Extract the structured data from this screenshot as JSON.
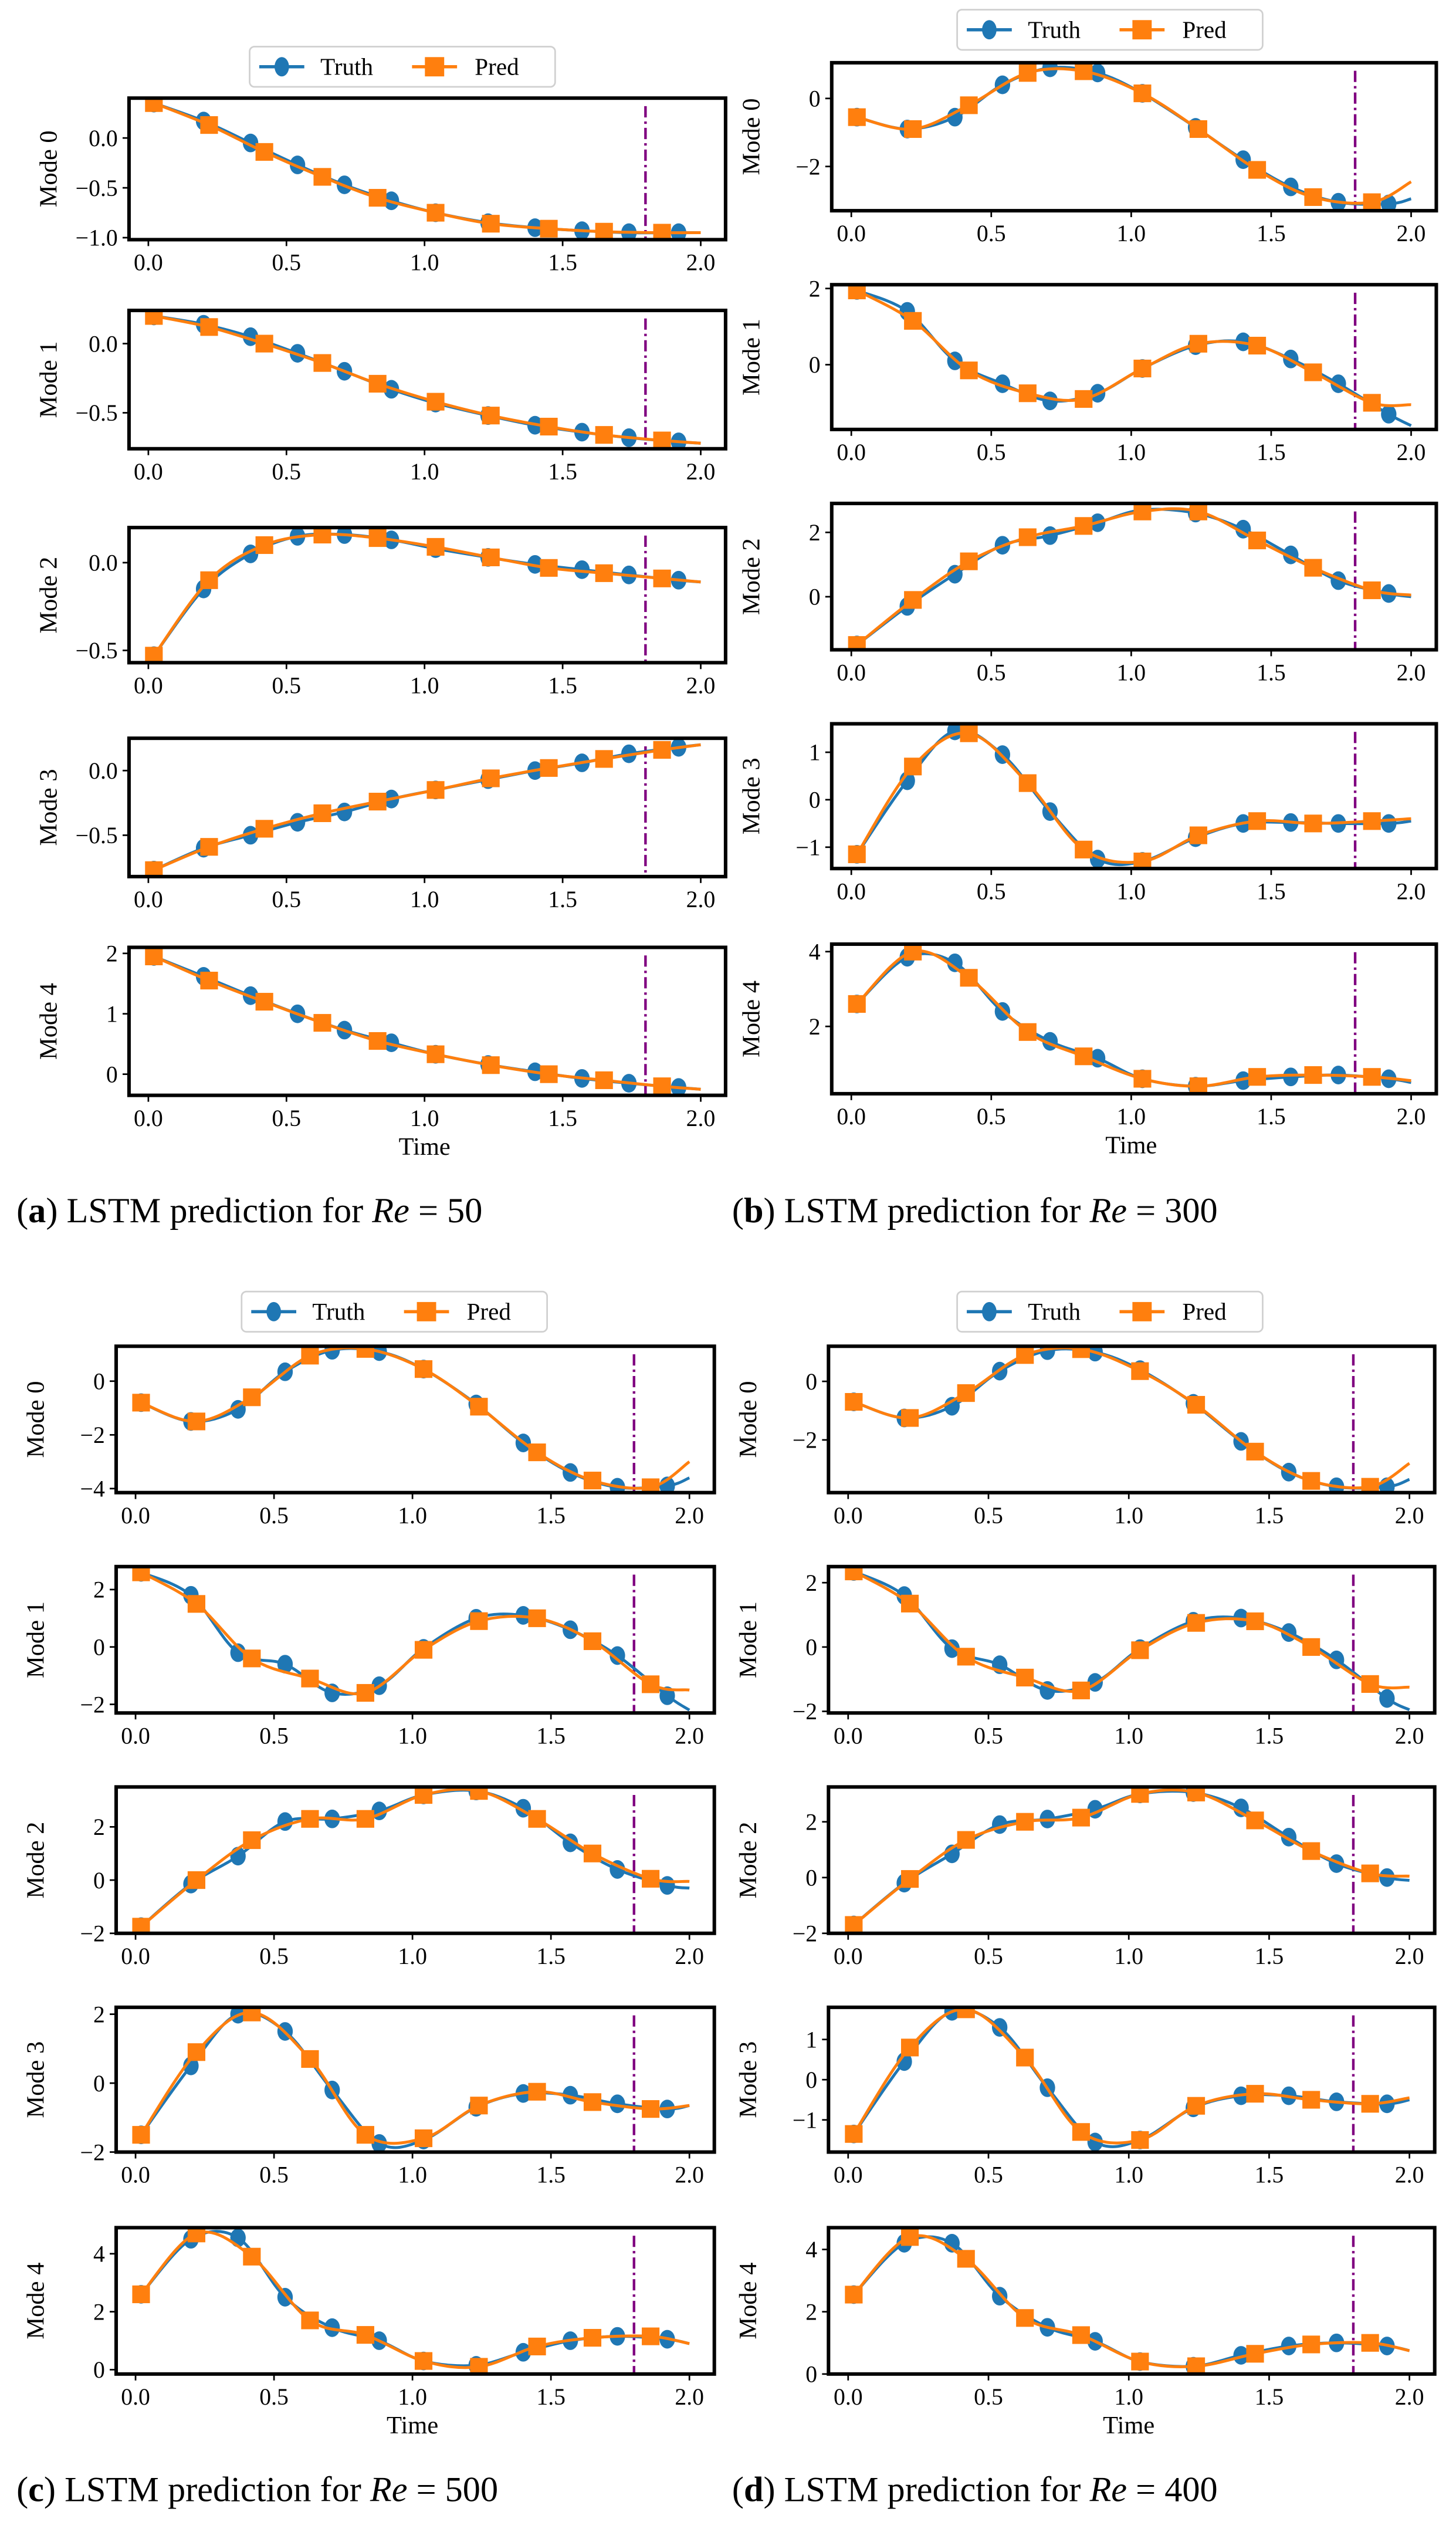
{
  "chart_data": [
    {
      "type": "line",
      "caption": {
        "label": "a",
        "text": " LSTM prediction for ",
        "var": "Re",
        "value": " = 50"
      },
      "legend": [
        "Truth",
        "Pred"
      ],
      "legend_placement": "top-center",
      "xlabel": "Time",
      "xticks": [
        0,
        0.5,
        1,
        1.5,
        2
      ],
      "xtick_labels": [
        "0.0",
        "0.5",
        "1.0",
        "1.5",
        "2.0"
      ],
      "xlim": [
        -0.07,
        2.09
      ],
      "split_time": 1.8,
      "t_truth": [
        0.02,
        0.2,
        0.37,
        0.54,
        0.71,
        0.88,
        1.04,
        1.23,
        1.4,
        1.57,
        1.74,
        1.92
      ],
      "t_pred": [
        0.02,
        0.22,
        0.42,
        0.63,
        0.83,
        1.04,
        1.24,
        1.45,
        1.65,
        1.86
      ],
      "subplots": [
        {
          "ylabel": "Mode 0",
          "ylim": [
            -1.02,
            0.4
          ],
          "yticks": [
            0,
            -0.5,
            -1
          ],
          "ytick_labels": [
            "0.0",
            "−0.5",
            "−1.0"
          ],
          "truth": [
            0.35,
            0.17,
            -0.05,
            -0.27,
            -0.47,
            -0.63,
            -0.75,
            -0.85,
            -0.9,
            -0.93,
            -0.95,
            -0.95
          ],
          "truth_end": -0.95,
          "pred": [
            0.35,
            0.13,
            -0.14,
            -0.39,
            -0.6,
            -0.75,
            -0.86,
            -0.91,
            -0.94,
            -0.95
          ],
          "pred_end": -0.95
        },
        {
          "ylabel": "Mode 1",
          "ylim": [
            -0.76,
            0.24
          ],
          "yticks": [
            0,
            -0.5
          ],
          "ytick_labels": [
            "0.0",
            "−0.5"
          ],
          "truth": [
            0.2,
            0.14,
            0.05,
            -0.07,
            -0.2,
            -0.33,
            -0.43,
            -0.52,
            -0.59,
            -0.64,
            -0.68,
            -0.71
          ],
          "truth_end": -0.72,
          "pred": [
            0.2,
            0.12,
            0.0,
            -0.14,
            -0.29,
            -0.42,
            -0.52,
            -0.6,
            -0.66,
            -0.7
          ],
          "pred_end": -0.72
        },
        {
          "ylabel": "Mode 2",
          "ylim": [
            -0.57,
            0.2
          ],
          "yticks": [
            0,
            -0.5
          ],
          "ytick_labels": [
            "0.0",
            "−0.5"
          ],
          "truth": [
            -0.53,
            -0.15,
            0.05,
            0.15,
            0.16,
            0.13,
            0.08,
            0.03,
            -0.01,
            -0.04,
            -0.07,
            -0.1
          ],
          "truth_end": -0.11,
          "pred": [
            -0.53,
            -0.1,
            0.1,
            0.16,
            0.14,
            0.09,
            0.03,
            -0.03,
            -0.06,
            -0.09
          ],
          "pred_end": -0.11
        },
        {
          "ylabel": "Mode 3",
          "ylim": [
            -0.82,
            0.25
          ],
          "yticks": [
            0,
            -0.5
          ],
          "ytick_labels": [
            "0.0",
            "−0.5"
          ],
          "truth": [
            -0.77,
            -0.6,
            -0.5,
            -0.4,
            -0.32,
            -0.22,
            -0.15,
            -0.07,
            0.0,
            0.06,
            0.13,
            0.18
          ],
          "truth_end": 0.2,
          "pred": [
            -0.77,
            -0.59,
            -0.45,
            -0.33,
            -0.24,
            -0.15,
            -0.06,
            0.02,
            0.09,
            0.16
          ],
          "pred_end": 0.2
        },
        {
          "ylabel": "Mode 4",
          "ylim": [
            -0.35,
            2.1
          ],
          "yticks": [
            0,
            1,
            2
          ],
          "ytick_labels": [
            "0",
            "1",
            "2"
          ],
          "truth": [
            1.95,
            1.62,
            1.3,
            1.0,
            0.73,
            0.52,
            0.33,
            0.16,
            0.04,
            -0.07,
            -0.15,
            -0.22
          ],
          "truth_end": -0.25,
          "pred": [
            1.95,
            1.55,
            1.2,
            0.85,
            0.55,
            0.33,
            0.15,
            0.0,
            -0.1,
            -0.2
          ],
          "pred_end": -0.25
        }
      ]
    },
    {
      "type": "line",
      "caption": {
        "label": "b",
        "text": " LSTM prediction for ",
        "var": "Re",
        "value": " = 300"
      },
      "legend": [
        "Truth",
        "Pred"
      ],
      "legend_placement": "top-center",
      "xlabel": "Time",
      "xticks": [
        0,
        0.5,
        1,
        1.5,
        2
      ],
      "xtick_labels": [
        "0.0",
        "0.5",
        "1.0",
        "1.5",
        "2.0"
      ],
      "xlim": [
        -0.07,
        2.09
      ],
      "split_time": 1.8,
      "t_truth": [
        0.02,
        0.2,
        0.37,
        0.54,
        0.71,
        0.88,
        1.04,
        1.23,
        1.4,
        1.57,
        1.74,
        1.92
      ],
      "t_pred": [
        0.02,
        0.22,
        0.42,
        0.63,
        0.83,
        1.04,
        1.24,
        1.45,
        1.65,
        1.86
      ],
      "subplots": [
        {
          "ylabel": "Mode 0",
          "ylim": [
            -3.3,
            1.05
          ],
          "yticks": [
            0,
            -2
          ],
          "ytick_labels": [
            "0",
            "−2"
          ],
          "truth": [
            -0.55,
            -0.9,
            -0.55,
            0.4,
            0.9,
            0.75,
            0.15,
            -0.85,
            -1.8,
            -2.6,
            -3.05,
            -3.1
          ],
          "truth_end": -2.95,
          "pred": [
            -0.55,
            -0.9,
            -0.2,
            0.75,
            0.8,
            0.15,
            -0.9,
            -2.1,
            -2.9,
            -3.05
          ],
          "pred_end": -2.45
        },
        {
          "ylabel": "Mode 1",
          "ylim": [
            -1.7,
            2.1
          ],
          "yticks": [
            2,
            0
          ],
          "ytick_labels": [
            "2",
            "0"
          ],
          "truth": [
            1.95,
            1.4,
            0.1,
            -0.5,
            -0.95,
            -0.75,
            -0.1,
            0.5,
            0.6,
            0.15,
            -0.5,
            -1.3
          ],
          "truth_end": -1.6,
          "pred": [
            1.95,
            1.15,
            -0.15,
            -0.75,
            -0.9,
            -0.1,
            0.55,
            0.5,
            -0.2,
            -1.0
          ],
          "pred_end": -1.05
        },
        {
          "ylabel": "Mode 2",
          "ylim": [
            -1.65,
            2.9
          ],
          "yticks": [
            2,
            0
          ],
          "ytick_labels": [
            "2",
            "0"
          ],
          "truth": [
            -1.5,
            -0.3,
            0.7,
            1.6,
            1.9,
            2.3,
            2.7,
            2.6,
            2.1,
            1.3,
            0.5,
            0.1
          ],
          "truth_end": 0.0,
          "pred": [
            -1.5,
            -0.1,
            1.1,
            1.85,
            2.2,
            2.65,
            2.65,
            1.75,
            0.9,
            0.2
          ],
          "pred_end": 0.05
        },
        {
          "ylabel": "Mode 3",
          "ylim": [
            -1.45,
            1.6
          ],
          "yticks": [
            1,
            0,
            -1
          ],
          "ytick_labels": [
            "1",
            "0",
            "−1"
          ],
          "truth": [
            -1.15,
            0.4,
            1.45,
            0.95,
            -0.25,
            -1.25,
            -1.3,
            -0.8,
            -0.5,
            -0.48,
            -0.5,
            -0.5
          ],
          "truth_end": -0.45,
          "pred": [
            -1.15,
            0.7,
            1.4,
            0.35,
            -1.05,
            -1.3,
            -0.75,
            -0.45,
            -0.5,
            -0.45
          ],
          "pred_end": -0.4
        },
        {
          "ylabel": "Mode 4",
          "ylim": [
            0.2,
            4.2
          ],
          "yticks": [
            4,
            2
          ],
          "ytick_labels": [
            "4",
            "2"
          ],
          "truth": [
            2.6,
            3.85,
            3.7,
            2.4,
            1.6,
            1.15,
            0.6,
            0.4,
            0.55,
            0.65,
            0.7,
            0.6
          ],
          "truth_end": 0.5,
          "pred": [
            2.6,
            4.0,
            3.3,
            1.85,
            1.2,
            0.6,
            0.4,
            0.65,
            0.7,
            0.65
          ],
          "pred_end": 0.55
        }
      ]
    },
    {
      "type": "line",
      "caption": {
        "label": "c",
        "text": " LSTM prediction for ",
        "var": "Re",
        "value": " = 500"
      },
      "legend": [
        "Truth",
        "Pred"
      ],
      "legend_placement": "top-center",
      "xlabel": "Time",
      "xticks": [
        0,
        0.5,
        1,
        1.5,
        2
      ],
      "xtick_labels": [
        "0.0",
        "0.5",
        "1.0",
        "1.5",
        "2.0"
      ],
      "xlim": [
        -0.07,
        2.09
      ],
      "split_time": 1.8,
      "t_truth": [
        0.02,
        0.2,
        0.37,
        0.54,
        0.71,
        0.88,
        1.04,
        1.23,
        1.4,
        1.57,
        1.74,
        1.92
      ],
      "t_pred": [
        0.02,
        0.22,
        0.42,
        0.63,
        0.83,
        1.04,
        1.24,
        1.45,
        1.65,
        1.86
      ],
      "subplots": [
        {
          "ylabel": "Mode 0",
          "ylim": [
            -4.15,
            1.3
          ],
          "yticks": [
            0,
            -2,
            -4
          ],
          "ytick_labels": [
            "0",
            "−2",
            "−4"
          ],
          "truth": [
            -0.8,
            -1.5,
            -1.05,
            0.35,
            1.15,
            1.1,
            0.45,
            -0.85,
            -2.3,
            -3.4,
            -3.95,
            -3.9
          ],
          "truth_end": -3.6,
          "pred": [
            -0.8,
            -1.5,
            -0.6,
            0.95,
            1.2,
            0.45,
            -0.95,
            -2.65,
            -3.7,
            -3.95
          ],
          "pred_end": -3.0
        },
        {
          "ylabel": "Mode 1",
          "ylim": [
            -2.3,
            2.8
          ],
          "yticks": [
            2,
            0,
            -2
          ],
          "ytick_labels": [
            "2",
            "0",
            "−2"
          ],
          "truth": [
            2.6,
            1.8,
            -0.2,
            -0.6,
            -1.6,
            -1.35,
            -0.05,
            1.0,
            1.1,
            0.6,
            -0.3,
            -1.7
          ],
          "truth_end": -2.2,
          "pred": [
            2.6,
            1.5,
            -0.4,
            -1.1,
            -1.6,
            -0.1,
            0.9,
            1.0,
            0.2,
            -1.3
          ],
          "pred_end": -1.5
        },
        {
          "ylabel": "Mode 2",
          "ylim": [
            -2.0,
            3.5
          ],
          "yticks": [
            2,
            0,
            -2
          ],
          "ytick_labels": [
            "2",
            "0",
            "−2"
          ],
          "truth": [
            -1.75,
            -0.15,
            0.9,
            2.2,
            2.3,
            2.6,
            3.2,
            3.35,
            2.7,
            1.4,
            0.4,
            -0.2
          ],
          "truth_end": -0.3,
          "pred": [
            -1.75,
            0.0,
            1.5,
            2.3,
            2.3,
            3.2,
            3.35,
            2.3,
            1.0,
            0.05
          ],
          "pred_end": -0.05
        },
        {
          "ylabel": "Mode 3",
          "ylim": [
            -2.0,
            2.2
          ],
          "yticks": [
            2,
            0,
            -2
          ],
          "ytick_labels": [
            "2",
            "0",
            "−2"
          ],
          "truth": [
            -1.5,
            0.5,
            2.0,
            1.5,
            -0.2,
            -1.75,
            -1.65,
            -0.7,
            -0.3,
            -0.35,
            -0.6,
            -0.75
          ],
          "truth_end": -0.65,
          "pred": [
            -1.5,
            0.9,
            2.05,
            0.7,
            -1.5,
            -1.6,
            -0.65,
            -0.25,
            -0.55,
            -0.75
          ],
          "pred_end": -0.65
        },
        {
          "ylabel": "Mode 4",
          "ylim": [
            -0.15,
            4.9
          ],
          "yticks": [
            4,
            2,
            0
          ],
          "ytick_labels": [
            "4",
            "2",
            "0"
          ],
          "truth": [
            2.6,
            4.5,
            4.55,
            2.5,
            1.45,
            1.0,
            0.3,
            0.15,
            0.6,
            1.0,
            1.15,
            1.05
          ],
          "truth_end": 0.9,
          "pred": [
            2.6,
            4.7,
            3.9,
            1.7,
            1.2,
            0.3,
            0.1,
            0.8,
            1.1,
            1.15
          ],
          "pred_end": 0.9
        }
      ]
    },
    {
      "type": "line",
      "caption": {
        "label": "d",
        "text": " LSTM prediction for ",
        "var": "Re",
        "value": " = 400"
      },
      "legend": [
        "Truth",
        "Pred"
      ],
      "legend_placement": "top-center",
      "xlabel": "Time",
      "xticks": [
        0,
        0.5,
        1,
        1.5,
        2
      ],
      "xtick_labels": [
        "0.0",
        "0.5",
        "1.0",
        "1.5",
        "2.0"
      ],
      "xlim": [
        -0.07,
        2.09
      ],
      "split_time": 1.8,
      "t_truth": [
        0.02,
        0.2,
        0.37,
        0.54,
        0.71,
        0.88,
        1.04,
        1.23,
        1.4,
        1.57,
        1.74,
        1.92
      ],
      "t_pred": [
        0.02,
        0.22,
        0.42,
        0.63,
        0.83,
        1.04,
        1.24,
        1.45,
        1.65,
        1.86
      ],
      "subplots": [
        {
          "ylabel": "Mode 0",
          "ylim": [
            -3.8,
            1.2
          ],
          "yticks": [
            0,
            -2
          ],
          "ytick_labels": [
            "0",
            "−2"
          ],
          "truth": [
            -0.7,
            -1.25,
            -0.85,
            0.35,
            1.05,
            1.0,
            0.4,
            -0.75,
            -2.05,
            -3.1,
            -3.6,
            -3.6
          ],
          "truth_end": -3.35,
          "pred": [
            -0.7,
            -1.25,
            -0.4,
            0.9,
            1.1,
            0.35,
            -0.8,
            -2.4,
            -3.4,
            -3.6
          ],
          "pred_end": -2.8
        },
        {
          "ylabel": "Mode 1",
          "ylim": [
            -2.05,
            2.5
          ],
          "yticks": [
            2,
            0,
            -2
          ],
          "ytick_labels": [
            "2",
            "0",
            "−2"
          ],
          "truth": [
            2.35,
            1.6,
            -0.05,
            -0.55,
            -1.35,
            -1.1,
            -0.05,
            0.8,
            0.9,
            0.45,
            -0.4,
            -1.6
          ],
          "truth_end": -1.95,
          "pred": [
            2.35,
            1.35,
            -0.3,
            -0.95,
            -1.35,
            -0.1,
            0.75,
            0.8,
            0.0,
            -1.15
          ],
          "pred_end": -1.25
        },
        {
          "ylabel": "Mode 2",
          "ylim": [
            -2.0,
            3.25
          ],
          "yticks": [
            2,
            0,
            -2
          ],
          "ytick_labels": [
            "2",
            "0",
            "−2"
          ],
          "truth": [
            -1.7,
            -0.2,
            0.85,
            1.9,
            2.1,
            2.45,
            3.0,
            3.05,
            2.5,
            1.45,
            0.5,
            0.0
          ],
          "truth_end": -0.1,
          "pred": [
            -1.7,
            -0.05,
            1.35,
            2.0,
            2.15,
            3.0,
            3.05,
            2.05,
            0.95,
            0.15
          ],
          "pred_end": 0.05
        },
        {
          "ylabel": "Mode 3",
          "ylim": [
            -1.8,
            1.8
          ],
          "yticks": [
            1,
            0,
            -1
          ],
          "ytick_labels": [
            "1",
            "0",
            "−1"
          ],
          "truth": [
            -1.35,
            0.45,
            1.7,
            1.3,
            -0.2,
            -1.55,
            -1.5,
            -0.7,
            -0.4,
            -0.4,
            -0.55,
            -0.6
          ],
          "truth_end": -0.5,
          "pred": [
            -1.35,
            0.8,
            1.75,
            0.55,
            -1.3,
            -1.5,
            -0.65,
            -0.35,
            -0.5,
            -0.6
          ],
          "pred_end": -0.45
        },
        {
          "ylabel": "Mode 4",
          "ylim": [
            0.0,
            4.7
          ],
          "yticks": [
            4,
            2,
            0
          ],
          "ytick_labels": [
            "4",
            "2",
            "0"
          ],
          "truth": [
            2.55,
            4.2,
            4.2,
            2.5,
            1.5,
            1.05,
            0.4,
            0.25,
            0.6,
            0.9,
            1.0,
            0.9
          ],
          "truth_end": 0.75,
          "pred": [
            2.55,
            4.4,
            3.7,
            1.8,
            1.25,
            0.4,
            0.25,
            0.65,
            0.95,
            1.0
          ],
          "pred_end": 0.75
        }
      ]
    }
  ],
  "colors": {
    "truth": "#1f77b4",
    "pred": "#ff7f0e",
    "split_line": "#800080",
    "axes": "#000000"
  }
}
